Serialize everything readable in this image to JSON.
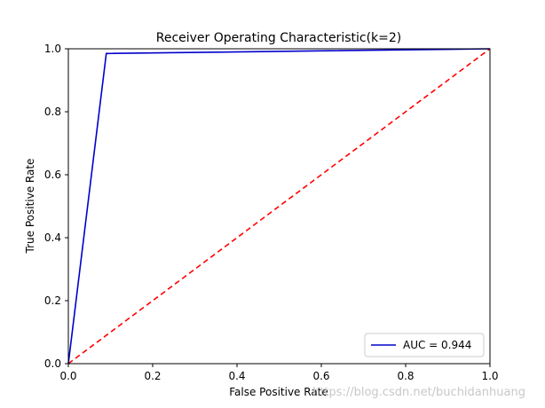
{
  "chart_data": {
    "type": "line",
    "title": "Receiver Operating Characteristic(k=2)",
    "xlabel": "False Positive Rate",
    "ylabel": "True Positive Rate",
    "xlim": [
      0.0,
      1.0
    ],
    "ylim": [
      0.0,
      1.0
    ],
    "x_ticks": [
      "0.0",
      "0.2",
      "0.4",
      "0.6",
      "0.8",
      "1.0"
    ],
    "y_ticks": [
      "0.0",
      "0.2",
      "0.4",
      "0.6",
      "0.8",
      "1.0"
    ],
    "grid": false,
    "legend_position": "lower-right",
    "series": [
      {
        "name": "AUC = 0.944",
        "color": "#0000cc",
        "style": "solid",
        "x": [
          0.0,
          0.09,
          1.0
        ],
        "y": [
          0.0,
          0.985,
          1.0
        ]
      },
      {
        "color": "#ff0000",
        "style": "dashed",
        "x": [
          0.0,
          1.0
        ],
        "y": [
          0.0,
          1.0
        ]
      }
    ]
  },
  "watermark": "https://blog.csdn.net/buchidanhuang"
}
